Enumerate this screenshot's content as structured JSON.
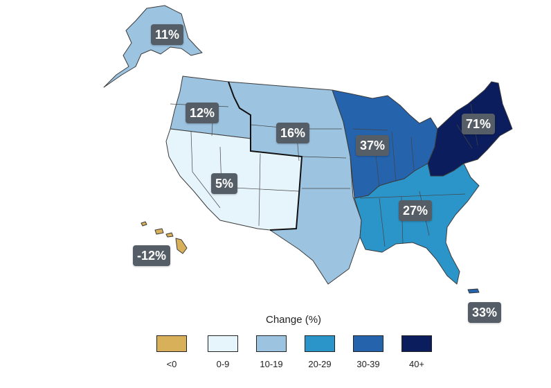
{
  "colors": {
    "lt0": "#d8b05a",
    "c0_9": "#e6f4fb",
    "c10_19": "#9cc3e0",
    "c20_29": "#2b95c9",
    "c30_39": "#2563ad",
    "c40plus": "#0b1d5c"
  },
  "regions": [
    {
      "id": "alaska",
      "label": "11%",
      "legend_bin": "10-19"
    },
    {
      "id": "northwest",
      "label": "12%",
      "legend_bin": "10-19"
    },
    {
      "id": "great-plains",
      "label": "16%",
      "legend_bin": "10-19"
    },
    {
      "id": "southwest",
      "label": "5%",
      "legend_bin": "0-9"
    },
    {
      "id": "hawaii",
      "label": "-12%",
      "legend_bin": "<0"
    },
    {
      "id": "midwest",
      "label": "37%",
      "legend_bin": "30-39"
    },
    {
      "id": "northeast",
      "label": "71%",
      "legend_bin": "40+"
    },
    {
      "id": "southeast",
      "label": "27%",
      "legend_bin": "20-29"
    },
    {
      "id": "puerto-rico",
      "label": "33%",
      "legend_bin": "30-39"
    }
  ],
  "legend": {
    "title": "Change (%)",
    "items": [
      {
        "label": "<0",
        "color": "#d8b05a"
      },
      {
        "label": "0-9",
        "color": "#e6f4fb"
      },
      {
        "label": "10-19",
        "color": "#9cc3e0"
      },
      {
        "label": "20-29",
        "color": "#2b95c9"
      },
      {
        "label": "30-39",
        "color": "#2563ad"
      },
      {
        "label": "40+",
        "color": "#0b1d5c"
      }
    ]
  }
}
